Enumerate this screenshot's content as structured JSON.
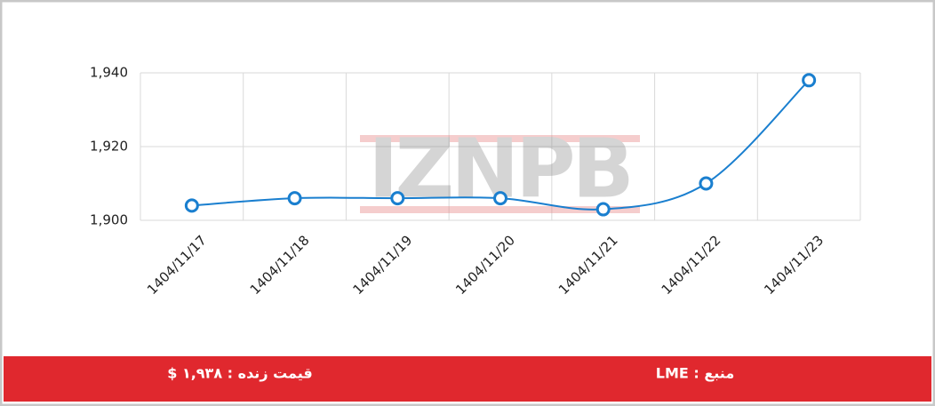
{
  "chart_data": {
    "type": "line",
    "watermark": "IZNPB",
    "categories": [
      "1404/11/17",
      "1404/11/18",
      "1404/11/19",
      "1404/11/20",
      "1404/11/21",
      "1404/11/22",
      "1404/11/23"
    ],
    "series": [
      {
        "name": "LME",
        "color": "#1a7fcf",
        "values": [
          1904,
          1906,
          1906,
          1906,
          1903,
          1910,
          1938
        ]
      }
    ],
    "ylim": [
      1900,
      1940
    ],
    "yticks": [
      {
        "value": 1900,
        "label": "1,900"
      },
      {
        "value": 1920,
        "label": "1,920"
      },
      {
        "value": 1940,
        "label": "1,940"
      }
    ],
    "grid": true
  },
  "footer": {
    "price": "قیمت زنده : ۱,۹۳۸ $",
    "source": "منبع : LME"
  }
}
